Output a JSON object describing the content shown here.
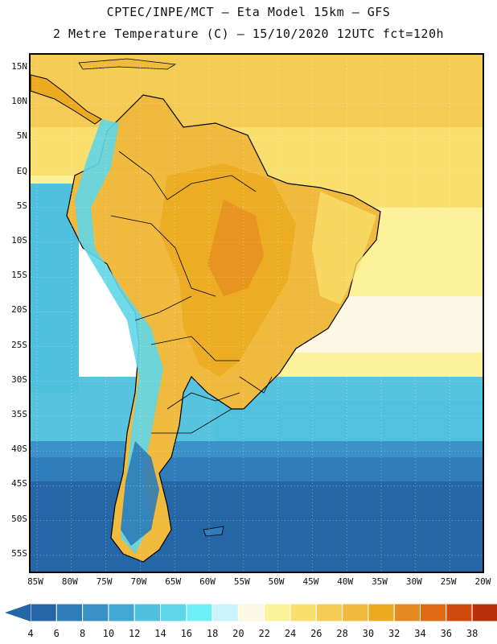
{
  "header": {
    "line1": "CPTEC/INPE/MCT –  Eta Model 15km – GFS",
    "line2": "2 Metre Temperature (C) – 15/10/2020 12UTC fct=120h"
  },
  "axes": {
    "lat_labels": [
      "15N",
      "10N",
      "5N",
      "EQ",
      "5S",
      "10S",
      "15S",
      "20S",
      "25S",
      "30S",
      "35S",
      "40S",
      "45S",
      "50S",
      "55S"
    ],
    "lon_labels": [
      "85W",
      "80W",
      "75W",
      "70W",
      "65W",
      "60W",
      "55W",
      "50W",
      "45W",
      "40W",
      "35W",
      "30W",
      "25W",
      "20W"
    ]
  },
  "legend": {
    "labels": [
      "4",
      "6",
      "8",
      "10",
      "12",
      "14",
      "16",
      "18",
      "20",
      "22",
      "24",
      "26",
      "28",
      "30",
      "32",
      "34",
      "36",
      "38"
    ],
    "colors": [
      "#2566a6",
      "#2e7cb9",
      "#3a92c8",
      "#41a8d3",
      "#4fc0dd",
      "#5fd6e8",
      "#70eef8",
      "#cbf3fb",
      "#fdf8e4",
      "#fdf29a",
      "#f9e06e",
      "#f4cc55",
      "#efba3e",
      "#ebaa20",
      "#e58a20",
      "#de6a14",
      "#cf4a0c",
      "#b8300a"
    ]
  },
  "icons": {
    "left_arrow": "colorbar-left-arrow-icon",
    "right_arrow": "colorbar-right-arrow-icon"
  }
}
